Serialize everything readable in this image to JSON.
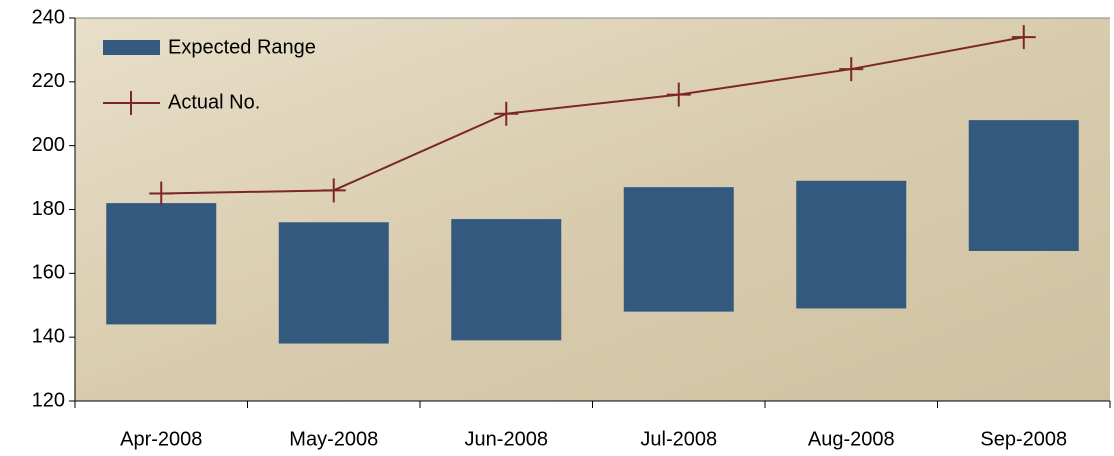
{
  "chart_data": {
    "type": "range-line",
    "categories": [
      "Apr-2008",
      "May-2008",
      "Jun-2008",
      "Jul-2008",
      "Aug-2008",
      "Sep-2008"
    ],
    "series": [
      {
        "name": "Expected Range",
        "color": "#34597f",
        "low": [
          144,
          138,
          139,
          148,
          149,
          167
        ],
        "high": [
          182,
          176,
          177,
          187,
          189,
          208
        ]
      },
      {
        "name": "Actual No.",
        "color": "#7b2727",
        "values": [
          185,
          186,
          210,
          216,
          224,
          234
        ]
      }
    ],
    "ylim": [
      120,
      240
    ],
    "yticks": [
      120,
      140,
      160,
      180,
      200,
      220,
      240
    ]
  }
}
